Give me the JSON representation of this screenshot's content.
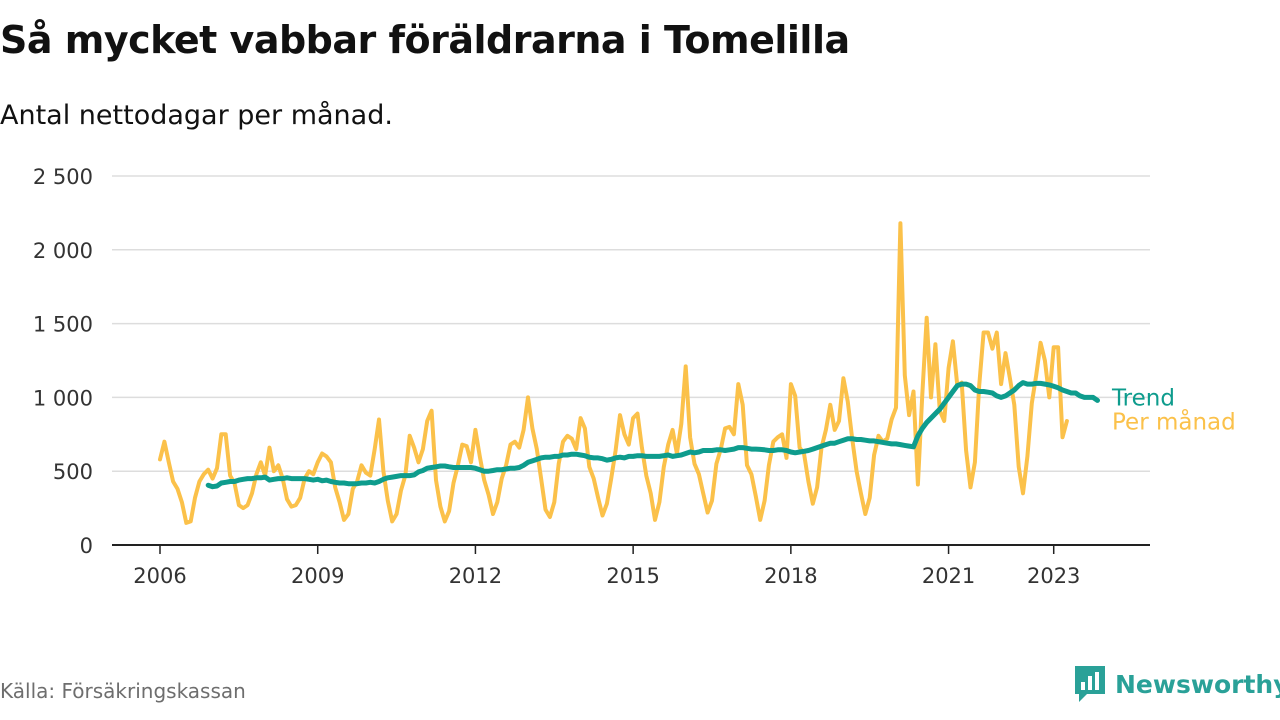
{
  "title": "Så mycket vabbar föräldrarna i Tomelilla",
  "subtitle": "Antal nettodagar per månad.",
  "source": "Källa: Försäkringskassan",
  "brand": "Newsworthy",
  "colors": {
    "trend": "#0e9c8d",
    "monthly": "#fbc14a",
    "grid": "#dddddd",
    "axis": "#222222",
    "brand": "#2aa198"
  },
  "chart_data": {
    "type": "line",
    "title": "Så mycket vabbar föräldrarna i Tomelilla",
    "subtitle": "Antal nettodagar per månad.",
    "xlabel": "",
    "ylabel": "",
    "x_ticks": [
      "2006",
      "2009",
      "2012",
      "2015",
      "2018",
      "2021",
      "2023"
    ],
    "y_ticks": [
      "0",
      "500",
      "1 000",
      "1 500",
      "2 000",
      "2 500"
    ],
    "xlim": [
      2006.0,
      2023.833
    ],
    "ylim": [
      0,
      2500
    ],
    "grid": true,
    "legend_placement": "right, inline at line ends",
    "series": [
      {
        "name": "Per månad",
        "color": "#fbc14a",
        "start": "2006-01",
        "values": [
          580,
          700,
          560,
          430,
          380,
          290,
          150,
          160,
          320,
          430,
          480,
          510,
          450,
          520,
          750,
          750,
          470,
          420,
          270,
          250,
          270,
          350,
          480,
          560,
          470,
          660,
          500,
          540,
          450,
          310,
          260,
          270,
          320,
          450,
          500,
          480,
          560,
          620,
          600,
          560,
          390,
          290,
          170,
          210,
          380,
          430,
          540,
          490,
          470,
          650,
          850,
          500,
          300,
          160,
          210,
          370,
          470,
          740,
          660,
          560,
          650,
          840,
          910,
          440,
          260,
          160,
          230,
          420,
          540,
          680,
          670,
          560,
          780,
          600,
          440,
          340,
          210,
          290,
          450,
          540,
          680,
          700,
          660,
          780,
          1000,
          790,
          650,
          450,
          240,
          190,
          290,
          550,
          700,
          740,
          720,
          650,
          860,
          790,
          530,
          450,
          320,
          200,
          280,
          450,
          640,
          880,
          750,
          680,
          860,
          890,
          660,
          470,
          350,
          170,
          290,
          530,
          680,
          780,
          620,
          820,
          1210,
          730,
          550,
          480,
          350,
          220,
          300,
          550,
          650,
          790,
          800,
          750,
          1090,
          950,
          540,
          480,
          330,
          170,
          300,
          540,
          700,
          730,
          750,
          590,
          1090,
          1010,
          660,
          620,
          430,
          280,
          390,
          660,
          780,
          950,
          780,
          840,
          1130,
          970,
          720,
          500,
          350,
          210,
          320,
          610,
          740,
          700,
          720,
          850,
          930,
          2180,
          1150,
          880,
          1040,
          410,
          1020,
          1540,
          1000,
          1360,
          910,
          840,
          1200,
          1380,
          1080,
          1100,
          640,
          390,
          560,
          1080,
          1440,
          1440,
          1330,
          1440,
          1090,
          1300,
          1130,
          950,
          530,
          350,
          600,
          960,
          1150,
          1370,
          1250,
          1000,
          1340,
          1340,
          730,
          840
        ]
      },
      {
        "name": "Trend",
        "color": "#0e9c8d",
        "start": "2006-12",
        "values": [
          405,
          395,
          400,
          420,
          425,
          430,
          430,
          440,
          445,
          450,
          450,
          455,
          455,
          460,
          440,
          445,
          450,
          450,
          455,
          450,
          450,
          450,
          450,
          445,
          440,
          445,
          435,
          440,
          430,
          425,
          420,
          420,
          415,
          415,
          415,
          420,
          420,
          425,
          420,
          430,
          445,
          455,
          460,
          465,
          470,
          470,
          470,
          475,
          495,
          505,
          520,
          525,
          530,
          535,
          535,
          530,
          525,
          525,
          525,
          525,
          525,
          520,
          510,
          500,
          500,
          505,
          510,
          510,
          515,
          520,
          520,
          525,
          540,
          560,
          570,
          580,
          590,
          595,
          595,
          600,
          600,
          610,
          610,
          615,
          615,
          610,
          605,
          595,
          590,
          590,
          585,
          575,
          580,
          590,
          595,
          590,
          600,
          600,
          605,
          605,
          600,
          600,
          600,
          600,
          605,
          610,
          600,
          605,
          610,
          620,
          630,
          625,
          630,
          640,
          640,
          640,
          645,
          645,
          640,
          645,
          650,
          660,
          660,
          655,
          650,
          650,
          648,
          645,
          640,
          640,
          645,
          645,
          640,
          630,
          625,
          630,
          635,
          640,
          650,
          660,
          670,
          680,
          690,
          690,
          700,
          710,
          720,
          720,
          715,
          715,
          710,
          705,
          705,
          700,
          695,
          690,
          685,
          685,
          680,
          675,
          670,
          665,
          740,
          790,
          830,
          860,
          890,
          920,
          960,
          1000,
          1040,
          1080,
          1090,
          1090,
          1080,
          1050,
          1040,
          1040,
          1035,
          1030,
          1010,
          1000,
          1010,
          1030,
          1050,
          1080,
          1100,
          1090,
          1090,
          1095,
          1095,
          1090,
          1085,
          1075,
          1065,
          1050,
          1040,
          1030,
          1030,
          1010,
          1000,
          1000,
          1000,
          980
        ]
      }
    ]
  }
}
